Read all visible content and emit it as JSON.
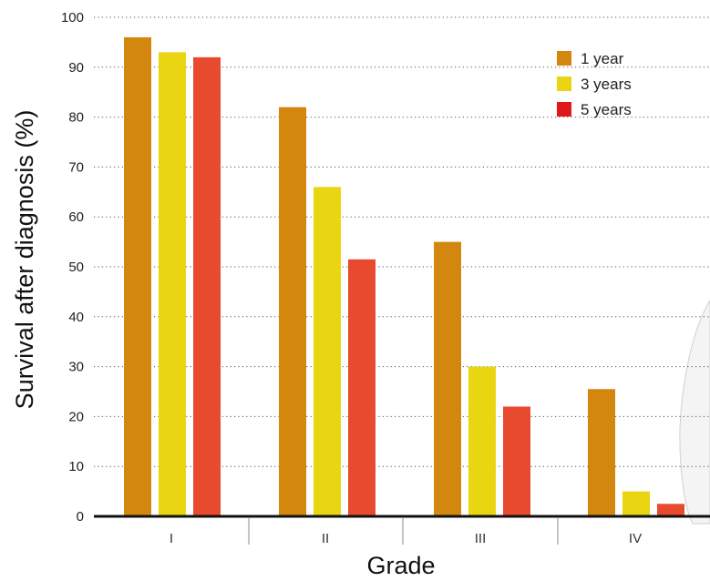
{
  "chart_data": {
    "type": "bar",
    "title": "",
    "xlabel": "Grade",
    "ylabel": "Survival after diagnosis (%)",
    "categories": [
      "I",
      "II",
      "III",
      "IV"
    ],
    "ylim": [
      0,
      100
    ],
    "yticks": [
      0,
      10,
      20,
      30,
      40,
      50,
      60,
      70,
      80,
      90,
      100
    ],
    "grid": "dotted horizontal",
    "legend_position": "top-right",
    "series": [
      {
        "name": "1 year",
        "color": "#d4870f",
        "values": [
          96,
          82,
          55,
          25.5
        ]
      },
      {
        "name": "3 years",
        "color": "#ead512",
        "values": [
          93,
          66,
          30,
          5
        ]
      },
      {
        "name": "5 years",
        "color": "#e84a30",
        "values": [
          92,
          51.5,
          22,
          2.5
        ]
      }
    ],
    "legend_colors": [
      "#d4870f",
      "#ead512",
      "#e0181c"
    ]
  }
}
